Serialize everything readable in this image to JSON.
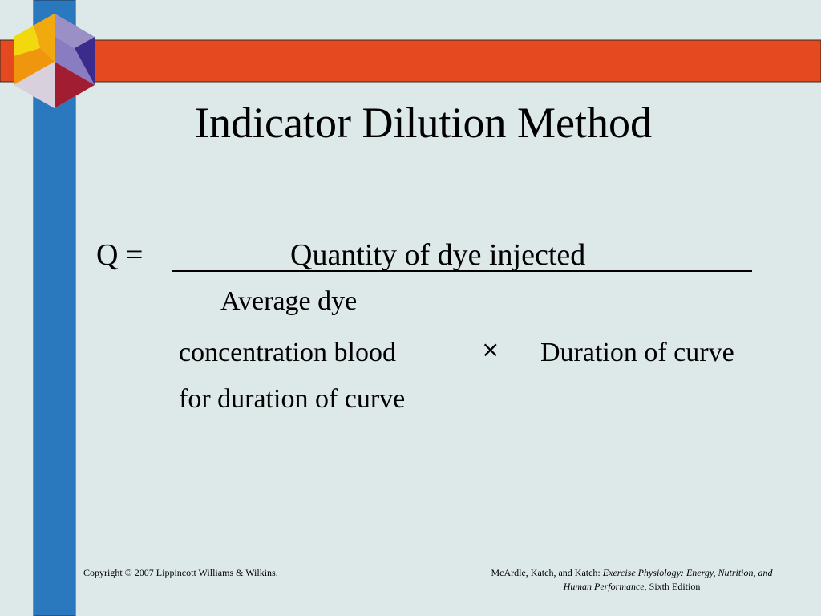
{
  "title": "Indicator Dilution Method",
  "formula": {
    "lhs": "Q =",
    "numerator": "Quantity of dye injected",
    "denominator_lines": [
      "Average dye",
      "concentration blood",
      "for duration of curve"
    ],
    "operator": "×",
    "multiplier": "Duration of curve"
  },
  "footer": {
    "copyright": "Copyright © 2007 Lippincott Williams & Wilkins.",
    "citation": {
      "authors": "McArdle, Katch, and Katch:",
      "book": "Exercise Physiology: Energy, Nutrition, and Human Performance,",
      "edition": "Sixth Edition"
    }
  }
}
